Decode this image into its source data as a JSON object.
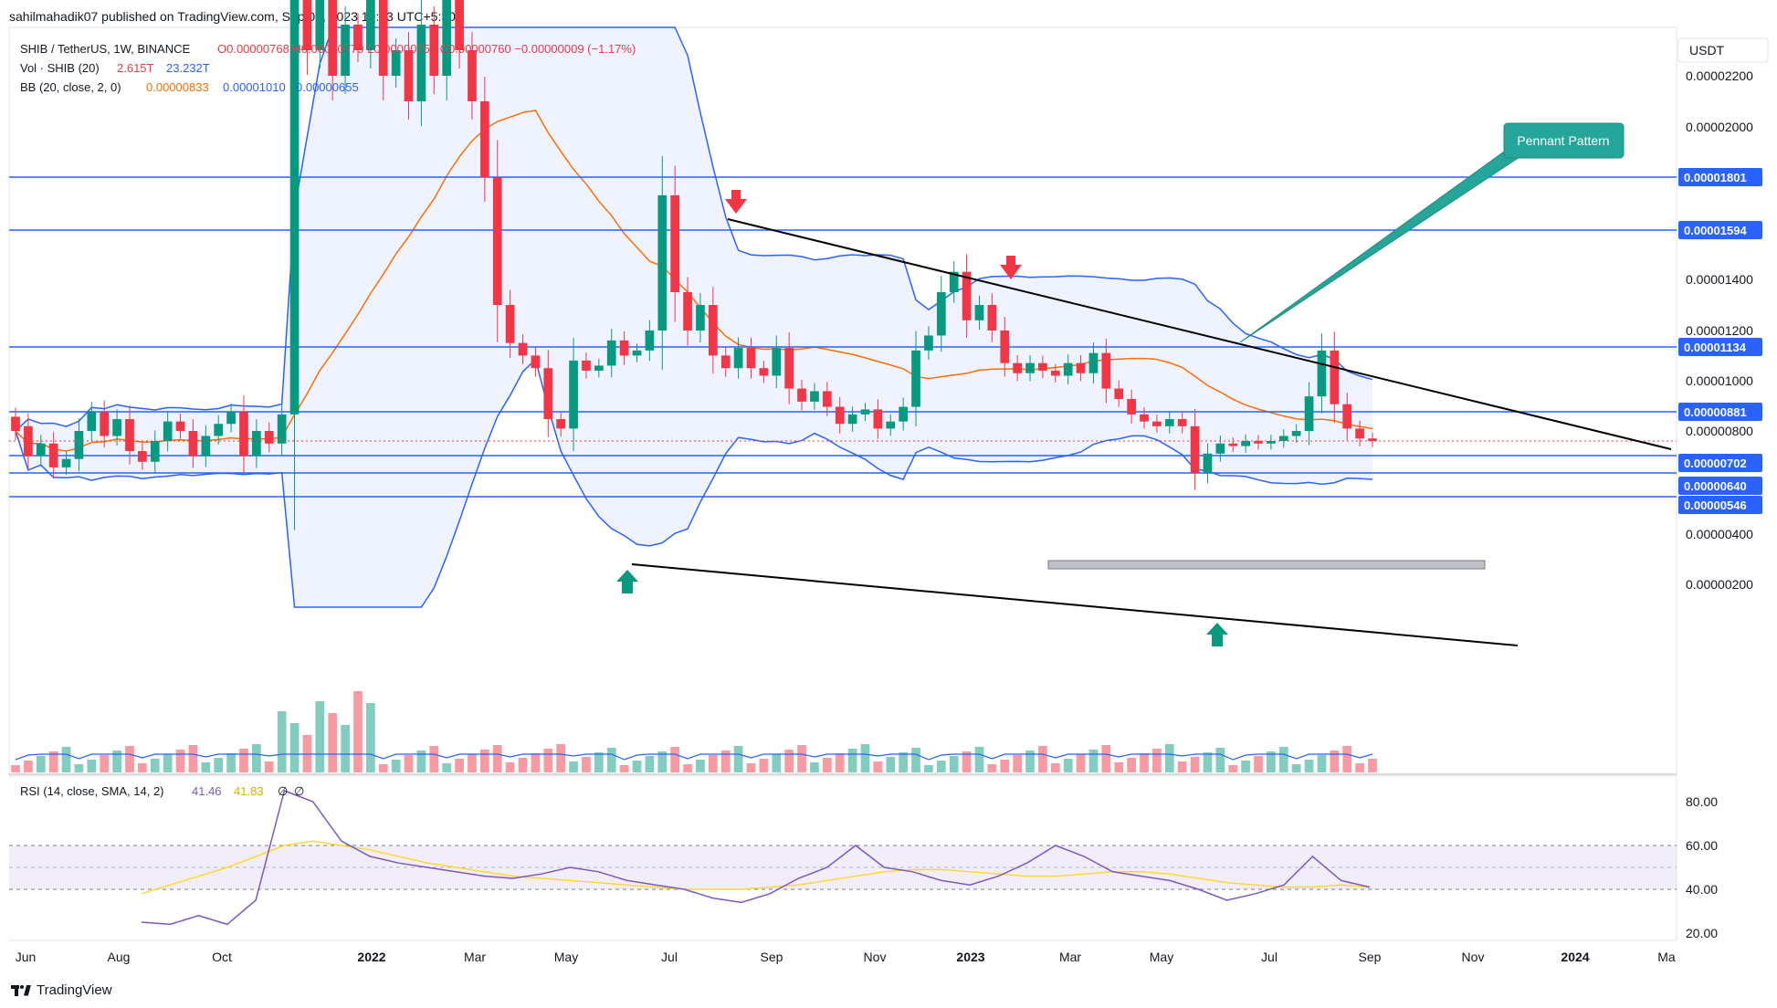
{
  "header": {
    "published_by": "sahilmahadik07 published on TradingView.com, Sep 05, 2023 19:03 UTC+5:30"
  },
  "legend": {
    "symbol": "SHIB / TetherUS, 1W, BINANCE",
    "ohlc": "O0.00000768  H0.00000779  L0.00000759  C0.00000760  −0.00000009 (−1.17%)",
    "vol_label": "Vol · SHIB (20)",
    "vol_value1": "2.615T",
    "vol_value2": "23.232T",
    "bb_label": "BB (20, close, 2, 0)",
    "bb_basis": "0.00000833",
    "bb_upper": "0.00001010",
    "bb_lower": "0.00000655",
    "rsi_label": "RSI (14, close, SMA, 14, 2)",
    "rsi_value": "41.46",
    "rsi_sma": "41.83",
    "rsi_extra1": "∅",
    "rsi_extra2": "∅"
  },
  "currency_label": "USDT",
  "annotation": {
    "label": "Pennant Pattern"
  },
  "footer": {
    "brand": "TradingView"
  },
  "colors": {
    "up": "#089981",
    "down": "#f23645",
    "level": "#2962ff",
    "bb_band": "#2962ff",
    "bb_basis": "#ff6d00",
    "rsi": "#7e57c2",
    "rsi_sma": "#fdd835",
    "annotation": "#26a69a"
  },
  "chart_data": [
    {
      "type": "candlestick",
      "title": "",
      "y_axis_ticks": [
        "0.00002200",
        "0.00002000",
        "0.00001400",
        "0.00001200",
        "0.00001000",
        "0.00000800",
        "0.00000400",
        "0.00000200"
      ],
      "x_axis_ticks": [
        "Jun",
        "Aug",
        "Oct",
        "2022",
        "Mar",
        "May",
        "Jul",
        "Sep",
        "Nov",
        "2023",
        "Mar",
        "May",
        "Jul",
        "Sep",
        "Nov",
        "2024",
        "Ma"
      ],
      "ylim": [
        1.4e-06,
        2.36e-05
      ],
      "levels": [
        {
          "value": 1.801e-05,
          "label": "0.00001801"
        },
        {
          "value": 1.594e-05,
          "label": "0.00001594"
        },
        {
          "value": 1.134e-05,
          "label": "0.00001134"
        },
        {
          "value": 8.81e-06,
          "label": "0.00000881"
        },
        {
          "value": 7.02e-06,
          "label": "0.00000702"
        },
        {
          "value": 6.4e-06,
          "label": "0.00000640"
        },
        {
          "value": 5.46e-06,
          "label": "0.00000546"
        }
      ],
      "current_price": 7.6e-06,
      "candles_sample": [
        {
          "date": "2022-05-02",
          "o": 1.8e-05,
          "c": 1.3e-05
        },
        {
          "date": "2022-06-13",
          "o": 9e-06,
          "c": 8e-06
        },
        {
          "date": "2022-08-08",
          "o": 1.2e-05,
          "c": 1.75e-05
        },
        {
          "date": "2023-01-30",
          "o": 1.25e-05,
          "c": 1.45e-05
        },
        {
          "date": "2023-06-05",
          "o": 8.2e-06,
          "c": 6.4e-06
        },
        {
          "date": "2023-08-07",
          "o": 9.5e-06,
          "c": 1.12e-05
        },
        {
          "date": "2023-09-04",
          "o": 7.68e-06,
          "c": 7.6e-06
        }
      ]
    },
    {
      "type": "line",
      "title": "",
      "y_axis_ticks": [
        "80.00",
        "60.00",
        "40.00",
        "20.00"
      ],
      "ylim": [
        15,
        90
      ],
      "bands": [
        30,
        70
      ],
      "series": [
        {
          "values": [
            25,
            24,
            28,
            24,
            35,
            85,
            80,
            62,
            55,
            52,
            50,
            48,
            46,
            45,
            47,
            50,
            48,
            44,
            42,
            40,
            36,
            34,
            38,
            45,
            50,
            60,
            50,
            48,
            44,
            42,
            46,
            52,
            60,
            55,
            48,
            46,
            44,
            40,
            35,
            38,
            42,
            55,
            44,
            41
          ]
        },
        {
          "values": [
            38,
            42,
            46,
            50,
            55,
            60,
            62,
            60,
            58,
            55,
            52,
            50,
            48,
            46,
            45,
            44,
            43,
            42,
            41,
            40,
            40,
            40,
            41,
            42,
            44,
            46,
            48,
            49,
            49,
            48,
            47,
            46,
            46,
            47,
            48,
            48,
            47,
            45,
            43,
            42,
            41,
            41,
            42,
            41
          ]
        }
      ]
    }
  ]
}
